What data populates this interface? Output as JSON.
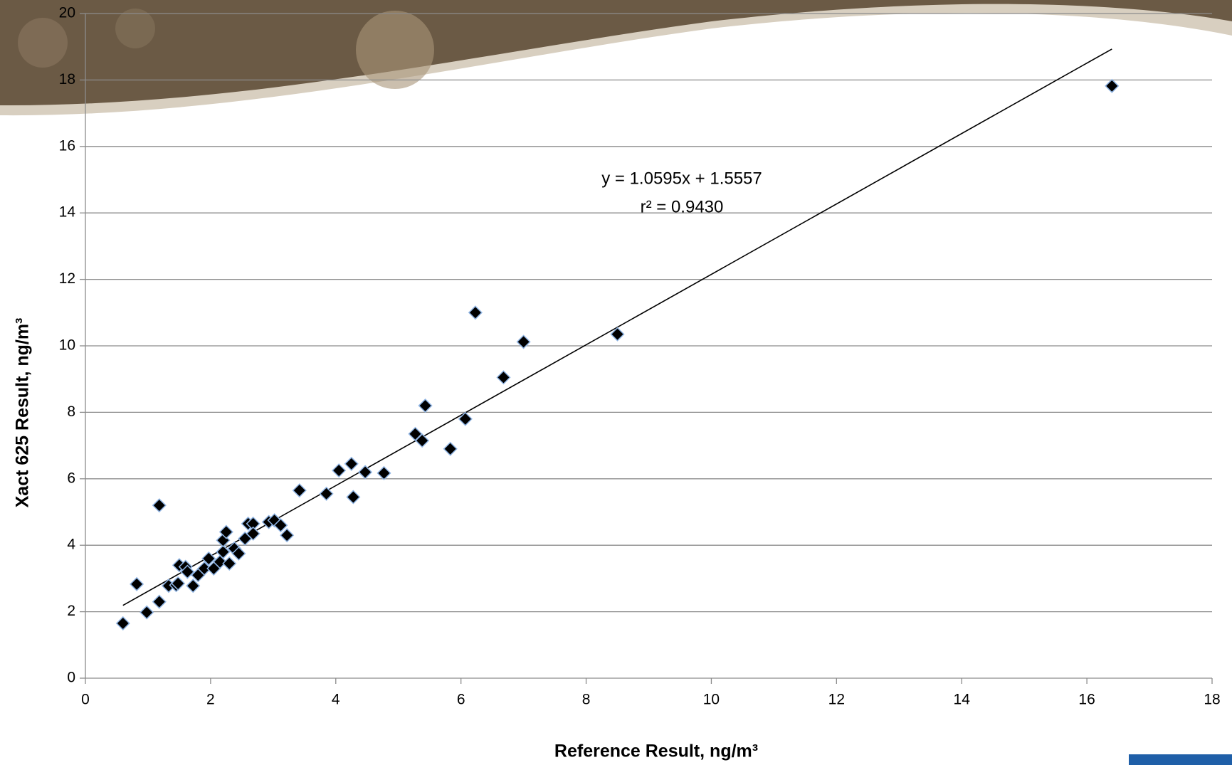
{
  "chart_data": {
    "type": "scatter",
    "x_label": "Reference Result, ng/m³",
    "y_label": "Xact 625 Result, ng/m³",
    "annotations": [
      "y = 1.0595x + 1.5557",
      "r² = 0.9430"
    ],
    "trendline": {
      "slope": 1.0595,
      "intercept": 1.5557,
      "color": "#000000"
    },
    "marker_color": "#000000",
    "marker_edge_color": "#8fb4e3",
    "grid": true,
    "x": [
      0.6,
      0.82,
      0.98,
      1.18,
      1.18,
      1.33,
      1.45,
      1.48,
      1.5,
      1.6,
      1.63,
      1.72,
      1.8,
      1.9,
      1.97,
      2.05,
      2.15,
      2.2,
      2.2,
      2.25,
      2.3,
      2.38,
      2.45,
      2.55,
      2.6,
      2.68,
      2.68,
      2.93,
      3.02,
      3.12,
      3.22,
      3.42,
      3.85,
      4.05,
      4.25,
      4.28,
      4.47,
      4.77,
      5.27,
      5.38,
      5.43,
      5.83,
      6.07,
      6.23,
      6.68,
      7.0,
      8.5,
      16.4
    ],
    "y": [
      1.65,
      2.83,
      1.98,
      2.3,
      5.2,
      2.78,
      2.8,
      2.85,
      3.4,
      3.35,
      3.2,
      2.78,
      3.1,
      3.3,
      3.6,
      3.3,
      3.5,
      3.8,
      4.15,
      4.4,
      3.45,
      3.9,
      3.75,
      4.2,
      4.65,
      4.65,
      4.35,
      4.7,
      4.75,
      4.6,
      4.3,
      5.65,
      5.55,
      6.25,
      6.45,
      5.45,
      6.2,
      6.17,
      7.35,
      7.15,
      8.2,
      6.9,
      7.8,
      11.0,
      9.05,
      10.12,
      10.35,
      17.82
    ],
    "xlim": [
      0,
      18
    ],
    "ylim": [
      0,
      20
    ],
    "xticks": [
      0,
      2,
      4,
      6,
      8,
      10,
      12,
      14,
      16,
      18
    ],
    "yticks": [
      0,
      2,
      4,
      6,
      8,
      10,
      12,
      14,
      16,
      18,
      20
    ]
  }
}
